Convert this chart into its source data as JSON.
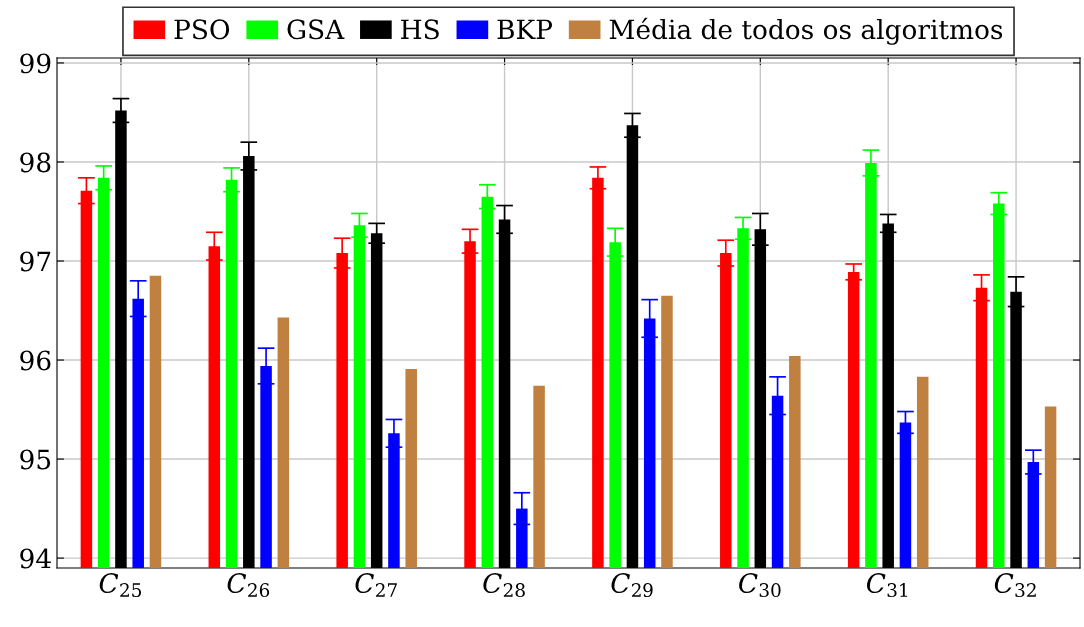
{
  "chart_data": {
    "type": "bar",
    "categories": [
      "C$_{25}$",
      "C$_{26}$",
      "C$_{27}$",
      "C$_{28}$",
      "C$_{29}$",
      "C$_{30}$",
      "C$_{31}$",
      "C$_{32}$"
    ],
    "series": [
      {
        "name": "PSO",
        "color": "#ff0000",
        "values": [
          97.71,
          97.15,
          97.08,
          97.2,
          97.84,
          97.08,
          96.89,
          96.73
        ],
        "errors": [
          0.13,
          0.14,
          0.15,
          0.12,
          0.11,
          0.13,
          0.08,
          0.13
        ]
      },
      {
        "name": "GSA",
        "color": "#00ff00",
        "values": [
          97.84,
          97.82,
          97.36,
          97.65,
          97.19,
          97.33,
          97.99,
          97.58
        ],
        "errors": [
          0.12,
          0.12,
          0.12,
          0.12,
          0.14,
          0.11,
          0.13,
          0.11
        ]
      },
      {
        "name": "HS",
        "color": "#000000",
        "values": [
          98.52,
          98.06,
          97.28,
          97.42,
          98.37,
          97.32,
          97.38,
          96.69
        ],
        "errors": [
          0.12,
          0.14,
          0.1,
          0.14,
          0.12,
          0.16,
          0.09,
          0.15
        ]
      },
      {
        "name": "BKP",
        "color": "#0000ff",
        "values": [
          96.62,
          95.94,
          95.26,
          94.5,
          96.42,
          95.64,
          95.37,
          94.97
        ],
        "errors": [
          0.18,
          0.18,
          0.14,
          0.16,
          0.19,
          0.19,
          0.11,
          0.12
        ]
      },
      {
        "name": "Média de todos os algoritmos",
        "color": "#bf8040",
        "values": [
          96.85,
          96.43,
          95.91,
          95.74,
          96.65,
          96.04,
          95.83,
          95.53
        ]
      }
    ],
    "ylim": [
      93.9,
      99.05
    ],
    "yticks": [
      94,
      95,
      96,
      97,
      98,
      99
    ],
    "grid": true,
    "legend": "top"
  }
}
